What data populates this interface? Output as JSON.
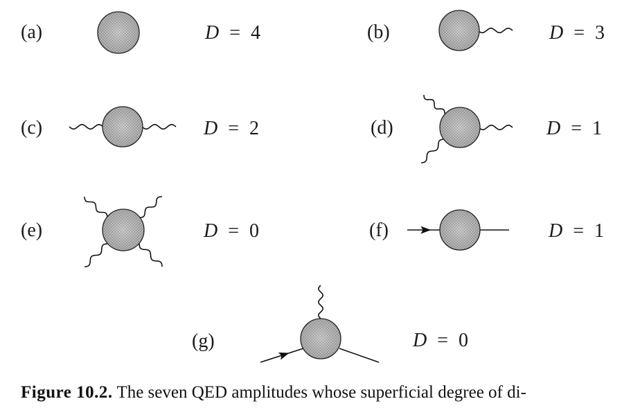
{
  "figure": {
    "diagrams": [
      {
        "label": "(a)",
        "D": "4",
        "photons": 0,
        "fermions": 0
      },
      {
        "label": "(b)",
        "D": "3",
        "photons": 1,
        "fermions": 0
      },
      {
        "label": "(c)",
        "D": "2",
        "photons": 2,
        "fermions": 0
      },
      {
        "label": "(d)",
        "D": "1",
        "photons": 3,
        "fermions": 0
      },
      {
        "label": "(e)",
        "D": "0",
        "photons": 4,
        "fermions": 0
      },
      {
        "label": "(f)",
        "D": "1",
        "photons": 0,
        "fermions": 2
      },
      {
        "label": "(g)",
        "D": "0",
        "photons": 1,
        "fermions": 2
      }
    ],
    "equation_symbol": "D",
    "equals": "="
  },
  "caption": {
    "label": "Figure 10.2.",
    "text": "The seven QED amplitudes whose superficial degree of di-"
  }
}
